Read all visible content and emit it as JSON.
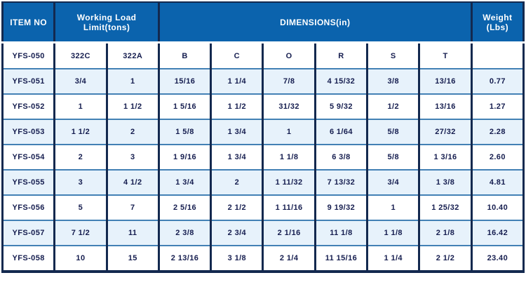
{
  "table": {
    "title_semantics": "product specification table",
    "header": {
      "item_no": "ITEM NO",
      "working_load_limit": "Working Load\nLimit(tons)",
      "dimensions": "DIMENSIONS(in)",
      "weight": "Weight\n(Lbs)"
    },
    "subheader": [
      "YFS-050",
      "322C",
      "322A",
      "B",
      "C",
      "O",
      "R",
      "S",
      "T",
      ""
    ],
    "rows": [
      [
        "YFS-051",
        "3/4",
        "1",
        "15/16",
        "1 1/4",
        "7/8",
        "4 15/32",
        "3/8",
        "13/16",
        "0.77"
      ],
      [
        "YFS-052",
        "1",
        "1 1/2",
        "1 5/16",
        "1 1/2",
        "31/32",
        "5 9/32",
        "1/2",
        "13/16",
        "1.27"
      ],
      [
        "YFS-053",
        "1 1/2",
        "2",
        "1 5/8",
        "1 3/4",
        "1",
        "6 1/64",
        "5/8",
        "27/32",
        "2.28"
      ],
      [
        "YFS-054",
        "2",
        "3",
        "1 9/16",
        "1 3/4",
        "1 1/8",
        "6 3/8",
        "5/8",
        "1 3/16",
        "2.60"
      ],
      [
        "YFS-055",
        "3",
        "4 1/2",
        "1 3/4",
        "2",
        "1 11/32",
        "7 13/32",
        "3/4",
        "1 3/8",
        "4.81"
      ],
      [
        "YFS-056",
        "5",
        "7",
        "2 5/16",
        "2 1/2",
        "1 11/16",
        "9 19/32",
        "1",
        "1 25/32",
        "10.40"
      ],
      [
        "YFS-057",
        "7 1/2",
        "11",
        "2 3/8",
        "2 3/4",
        "2 1/16",
        "11 1/8",
        "1 1/8",
        "2 1/8",
        "16.42"
      ],
      [
        "YFS-058",
        "10",
        "15",
        "2 13/16",
        "3 1/8",
        "2 1/4",
        "11 15/16",
        "1 1/4",
        "2 1/2",
        "23.40"
      ]
    ],
    "colors": {
      "header_blue": "#0b63ad",
      "border_navy": "#13294f",
      "row_stripe_light_blue": "#e7f2fb",
      "row_divider_blue": "#4381b5",
      "text_navy": "#151d4f",
      "header_text": "#ffffff"
    }
  }
}
